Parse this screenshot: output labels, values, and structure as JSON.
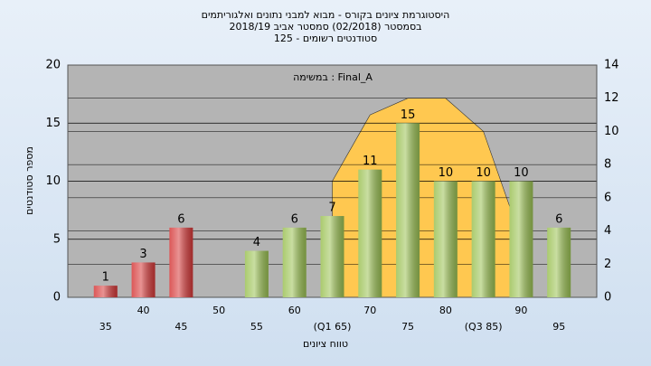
{
  "chart_data": {
    "type": "bar",
    "title": [
      "היסטוגרמת ציונים בקורס - מבוא למבני נתונים ואלגוריתמים",
      "בסמסטר  (02/2018)  סמסטר אביב 2018/19",
      "סטודנטים רשומים - 125"
    ],
    "annotation": "במשימה : Final_A",
    "x_label": "טווח ציונים",
    "y_label": "מספר סטודנטים",
    "categories": [
      "35",
      "40",
      "45",
      "50",
      "55",
      "60",
      "(Q1 65)",
      "70",
      "75",
      "80",
      "(Q3 85)",
      "90",
      "95"
    ],
    "values": [
      1,
      3,
      6,
      null,
      4,
      6,
      7,
      11,
      15,
      10,
      10,
      10,
      6
    ],
    "colors": [
      "#d63a3a",
      "#d63a3a",
      "#d63a3a",
      "#d63a3a",
      "#9cc255",
      "#9cc255",
      "#9cc255",
      "#9cc255",
      "#9cc255",
      "#9cc255",
      "#9cc255",
      "#9cc255",
      "#9cc255"
    ],
    "area": {
      "color": "#ffc850",
      "axis": "y2",
      "values": [
        null,
        null,
        null,
        null,
        null,
        null,
        7,
        11,
        12,
        12,
        10,
        3.5,
        null
      ]
    },
    "ylim": [
      0,
      20
    ],
    "yticks": [
      0,
      5,
      10,
      15,
      20
    ],
    "y2lim": [
      0,
      14
    ],
    "y2ticks": [
      0,
      2,
      4,
      6,
      8,
      10,
      12,
      14
    ],
    "grid": true
  }
}
